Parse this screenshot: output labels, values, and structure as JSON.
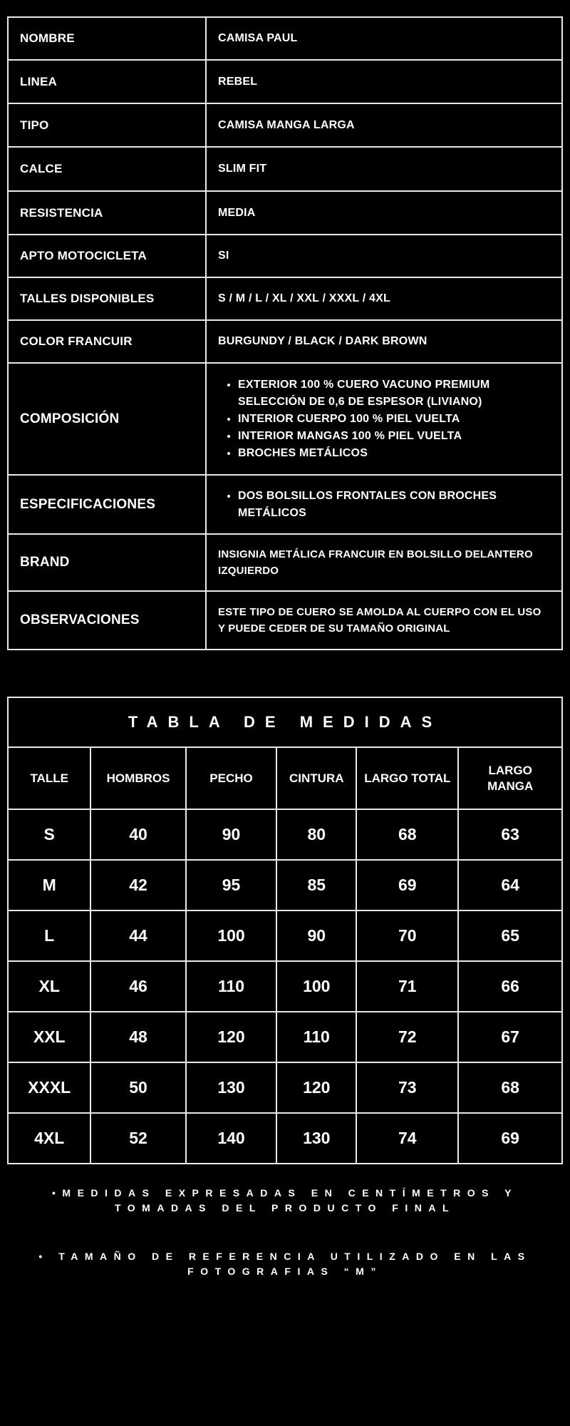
{
  "specs": [
    {
      "label": "NOMBRE",
      "value": "CAMISA PAUL"
    },
    {
      "label": "LINEA",
      "value": "REBEL"
    },
    {
      "label": "TIPO",
      "value": "CAMISA MANGA LARGA"
    },
    {
      "label": "CALCE",
      "value": "SLIM FIT"
    },
    {
      "label": "RESISTENCIA",
      "value": "MEDIA"
    },
    {
      "label": "APTO MOTOCICLETA",
      "value": "SI"
    },
    {
      "label": "TALLES DISPONIBLES",
      "value": "S / M / L / XL / XXL / XXXL / 4XL"
    },
    {
      "label": "COLOR FRANCUIR",
      "value": "BURGUNDY / BLACK / DARK BROWN"
    }
  ],
  "composicion": {
    "label": "COMPOSICIÓN",
    "items": [
      "EXTERIOR 100 % CUERO VACUNO PREMIUM SELECCIÓN DE 0,6 DE ESPESOR (LIVIANO)",
      "INTERIOR CUERPO 100 % PIEL VUELTA",
      "INTERIOR MANGAS 100  % PIEL VUELTA",
      "BROCHES  METÁLICOS"
    ]
  },
  "especificaciones": {
    "label": "ESPECIFICACIONES",
    "items": [
      "DOS BOLSILLOS FRONTALES CON BROCHES METÁLICOS"
    ]
  },
  "brand": {
    "label": "BRAND",
    "value": "INSIGNIA METÁLICA FRANCUIR EN BOLSILLO DELANTERO IZQUIERDO"
  },
  "observaciones": {
    "label": "OBSERVACIONES",
    "value": "ESTE TIPO DE CUERO SE AMOLDA AL CUERPO CON EL USO Y PUEDE CEDER DE SU TAMAÑO ORIGINAL"
  },
  "size_table": {
    "title": "TABLA DE MEDIDAS",
    "headers": [
      "TALLE",
      "HOMBROS",
      "PECHO",
      "CINTURA",
      "LARGO TOTAL",
      "LARGO MANGA"
    ],
    "rows": [
      [
        "S",
        "40",
        "90",
        "80",
        "68",
        "63"
      ],
      [
        "M",
        "42",
        "95",
        "85",
        "69",
        "64"
      ],
      [
        "L",
        "44",
        "100",
        "90",
        "70",
        "65"
      ],
      [
        "XL",
        "46",
        "110",
        "100",
        "71",
        "66"
      ],
      [
        "XXL",
        "48",
        "120",
        "110",
        "72",
        "67"
      ],
      [
        "XXXL",
        "50",
        "130",
        "120",
        "73",
        "68"
      ],
      [
        "4XL",
        "52",
        "140",
        "130",
        "74",
        "69"
      ]
    ]
  },
  "notes": [
    "•MEDIDAS EXPRESADAS EN CENTÍMETROS Y TOMADAS DEL PRODUCTO FINAL",
    "• TAMAÑO DE REFERENCIA UTILIZADO EN LAS FOTOGRAFIAS “M”"
  ]
}
